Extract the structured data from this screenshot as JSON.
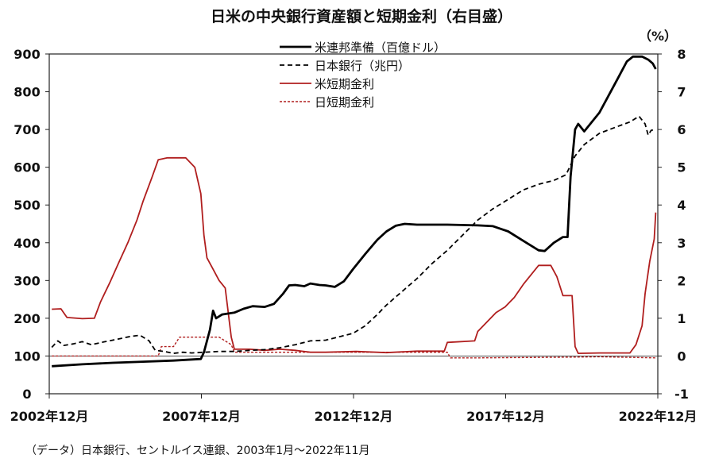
{
  "chart_data": {
    "type": "line",
    "title": "日米の中央銀行資産額と短期金利（右目盛）",
    "source": "（データ）日本銀行、セントルイス連銀、2003年1月～2022年11月",
    "y2_unit": "（%）",
    "x_range": [
      2002.917,
      2022.917
    ],
    "x_ticks": [
      {
        "x": 2002.917,
        "label": "2002年12月"
      },
      {
        "x": 2007.917,
        "label": "2007年12月"
      },
      {
        "x": 2012.917,
        "label": "2012年12月"
      },
      {
        "x": 2017.917,
        "label": "2017年12月"
      },
      {
        "x": 2022.917,
        "label": "2022年12月"
      }
    ],
    "y_left": {
      "min": 0,
      "max": 900,
      "ticks": [
        0,
        100,
        200,
        300,
        400,
        500,
        600,
        700,
        800,
        900
      ]
    },
    "y_right": {
      "min": -1,
      "max": 8,
      "ticks": [
        -1,
        0,
        1,
        2,
        3,
        4,
        5,
        6,
        7,
        8
      ]
    },
    "legend_position": "top-center",
    "series": [
      {
        "name": "米連邦準備（百億ドル）",
        "axis": "left",
        "color": "#000000",
        "dash": "",
        "width": 2.8,
        "points": [
          [
            2003.0,
            73
          ],
          [
            2004.0,
            78
          ],
          [
            2005.0,
            82
          ],
          [
            2006.0,
            85
          ],
          [
            2007.0,
            88
          ],
          [
            2007.9,
            92
          ],
          [
            2008.0,
            110
          ],
          [
            2008.2,
            170
          ],
          [
            2008.3,
            220
          ],
          [
            2008.4,
            200
          ],
          [
            2008.6,
            210
          ],
          [
            2009.0,
            215
          ],
          [
            2009.3,
            225
          ],
          [
            2009.6,
            232
          ],
          [
            2010.0,
            230
          ],
          [
            2010.3,
            238
          ],
          [
            2010.6,
            265
          ],
          [
            2010.8,
            287
          ],
          [
            2011.0,
            288
          ],
          [
            2011.3,
            285
          ],
          [
            2011.5,
            292
          ],
          [
            2011.8,
            288
          ],
          [
            2012.0,
            287
          ],
          [
            2012.3,
            283
          ],
          [
            2012.6,
            298
          ],
          [
            2012.9,
            330
          ],
          [
            2013.3,
            370
          ],
          [
            2013.7,
            408
          ],
          [
            2014.0,
            430
          ],
          [
            2014.3,
            445
          ],
          [
            2014.6,
            450
          ],
          [
            2015.0,
            448
          ],
          [
            2016.0,
            448
          ],
          [
            2017.0,
            446
          ],
          [
            2017.5,
            444
          ],
          [
            2018.0,
            430
          ],
          [
            2018.5,
            405
          ],
          [
            2019.0,
            380
          ],
          [
            2019.2,
            378
          ],
          [
            2019.5,
            400
          ],
          [
            2019.8,
            415
          ],
          [
            2019.95,
            415
          ],
          [
            2020.05,
            575
          ],
          [
            2020.2,
            700
          ],
          [
            2020.3,
            715
          ],
          [
            2020.5,
            695
          ],
          [
            2020.8,
            725
          ],
          [
            2021.0,
            745
          ],
          [
            2021.3,
            790
          ],
          [
            2021.6,
            835
          ],
          [
            2021.9,
            880
          ],
          [
            2022.1,
            893
          ],
          [
            2022.4,
            893
          ],
          [
            2022.6,
            885
          ],
          [
            2022.75,
            875
          ],
          [
            2022.85,
            860
          ]
        ]
      },
      {
        "name": "日本銀行（兆円）",
        "axis": "left",
        "color": "#000000",
        "dash": "6,4",
        "width": 1.8,
        "points": [
          [
            2003.0,
            123
          ],
          [
            2003.2,
            140
          ],
          [
            2003.4,
            128
          ],
          [
            2003.7,
            132
          ],
          [
            2004.0,
            138
          ],
          [
            2004.3,
            130
          ],
          [
            2004.7,
            137
          ],
          [
            2005.0,
            142
          ],
          [
            2005.3,
            147
          ],
          [
            2005.6,
            152
          ],
          [
            2005.9,
            155
          ],
          [
            2006.2,
            140
          ],
          [
            2006.4,
            115
          ],
          [
            2006.7,
            112
          ],
          [
            2007.0,
            107
          ],
          [
            2007.3,
            110
          ],
          [
            2007.6,
            108
          ],
          [
            2008.0,
            110
          ],
          [
            2008.5,
            112
          ],
          [
            2009.0,
            112
          ],
          [
            2009.5,
            115
          ],
          [
            2010.0,
            117
          ],
          [
            2010.5,
            122
          ],
          [
            2011.0,
            130
          ],
          [
            2011.5,
            140
          ],
          [
            2012.0,
            142
          ],
          [
            2012.5,
            152
          ],
          [
            2012.9,
            160
          ],
          [
            2013.3,
            180
          ],
          [
            2013.7,
            210
          ],
          [
            2014.0,
            235
          ],
          [
            2014.5,
            270
          ],
          [
            2015.0,
            305
          ],
          [
            2015.5,
            345
          ],
          [
            2016.0,
            380
          ],
          [
            2016.5,
            420
          ],
          [
            2017.0,
            460
          ],
          [
            2017.5,
            490
          ],
          [
            2018.0,
            515
          ],
          [
            2018.5,
            540
          ],
          [
            2019.0,
            555
          ],
          [
            2019.5,
            565
          ],
          [
            2019.9,
            580
          ],
          [
            2020.2,
            630
          ],
          [
            2020.5,
            660
          ],
          [
            2021.0,
            690
          ],
          [
            2021.5,
            705
          ],
          [
            2022.0,
            720
          ],
          [
            2022.3,
            735
          ],
          [
            2022.5,
            715
          ],
          [
            2022.6,
            685
          ],
          [
            2022.7,
            698
          ],
          [
            2022.85,
            700
          ]
        ]
      },
      {
        "name": "米短期金利",
        "axis": "right",
        "color": "#b01e1e",
        "dash": "",
        "width": 1.8,
        "points": [
          [
            2003.0,
            1.24
          ],
          [
            2003.3,
            1.25
          ],
          [
            2003.5,
            1.02
          ],
          [
            2004.0,
            0.99
          ],
          [
            2004.4,
            1.0
          ],
          [
            2004.6,
            1.43
          ],
          [
            2004.9,
            1.93
          ],
          [
            2005.2,
            2.47
          ],
          [
            2005.5,
            3.0
          ],
          [
            2005.8,
            3.6
          ],
          [
            2006.0,
            4.1
          ],
          [
            2006.3,
            4.75
          ],
          [
            2006.5,
            5.2
          ],
          [
            2006.8,
            5.25
          ],
          [
            2007.0,
            5.25
          ],
          [
            2007.4,
            5.25
          ],
          [
            2007.7,
            5.0
          ],
          [
            2007.9,
            4.3
          ],
          [
            2008.0,
            3.2
          ],
          [
            2008.1,
            2.6
          ],
          [
            2008.3,
            2.3
          ],
          [
            2008.5,
            2.0
          ],
          [
            2008.7,
            1.8
          ],
          [
            2008.9,
            0.5
          ],
          [
            2009.0,
            0.18
          ],
          [
            2009.5,
            0.18
          ],
          [
            2010.0,
            0.15
          ],
          [
            2010.5,
            0.18
          ],
          [
            2011.0,
            0.15
          ],
          [
            2011.5,
            0.1
          ],
          [
            2012.0,
            0.1
          ],
          [
            2013.0,
            0.12
          ],
          [
            2014.0,
            0.09
          ],
          [
            2015.0,
            0.13
          ],
          [
            2015.9,
            0.13
          ],
          [
            2016.0,
            0.36
          ],
          [
            2016.9,
            0.4
          ],
          [
            2017.0,
            0.65
          ],
          [
            2017.3,
            0.9
          ],
          [
            2017.6,
            1.15
          ],
          [
            2017.9,
            1.3
          ],
          [
            2018.2,
            1.55
          ],
          [
            2018.5,
            1.9
          ],
          [
            2018.8,
            2.2
          ],
          [
            2019.0,
            2.4
          ],
          [
            2019.4,
            2.4
          ],
          [
            2019.6,
            2.1
          ],
          [
            2019.8,
            1.6
          ],
          [
            2020.1,
            1.6
          ],
          [
            2020.2,
            0.25
          ],
          [
            2020.3,
            0.07
          ],
          [
            2021.0,
            0.08
          ],
          [
            2022.0,
            0.08
          ],
          [
            2022.2,
            0.3
          ],
          [
            2022.4,
            0.8
          ],
          [
            2022.5,
            1.65
          ],
          [
            2022.65,
            2.5
          ],
          [
            2022.8,
            3.1
          ],
          [
            2022.85,
            3.8
          ]
        ]
      },
      {
        "name": "日短期金利",
        "axis": "right",
        "color": "#b01e1e",
        "dash": "3,2",
        "width": 1.4,
        "points": [
          [
            2003.0,
            0.0
          ],
          [
            2006.5,
            0.0
          ],
          [
            2006.6,
            0.25
          ],
          [
            2007.0,
            0.25
          ],
          [
            2007.2,
            0.5
          ],
          [
            2008.0,
            0.5
          ],
          [
            2008.5,
            0.5
          ],
          [
            2008.9,
            0.3
          ],
          [
            2009.0,
            0.1
          ],
          [
            2010.0,
            0.1
          ],
          [
            2012.0,
            0.1
          ],
          [
            2016.0,
            0.1
          ],
          [
            2016.1,
            -0.05
          ],
          [
            2017.0,
            -0.05
          ],
          [
            2020.0,
            -0.03
          ],
          [
            2021.0,
            -0.02
          ],
          [
            2022.85,
            -0.05
          ]
        ]
      }
    ]
  }
}
